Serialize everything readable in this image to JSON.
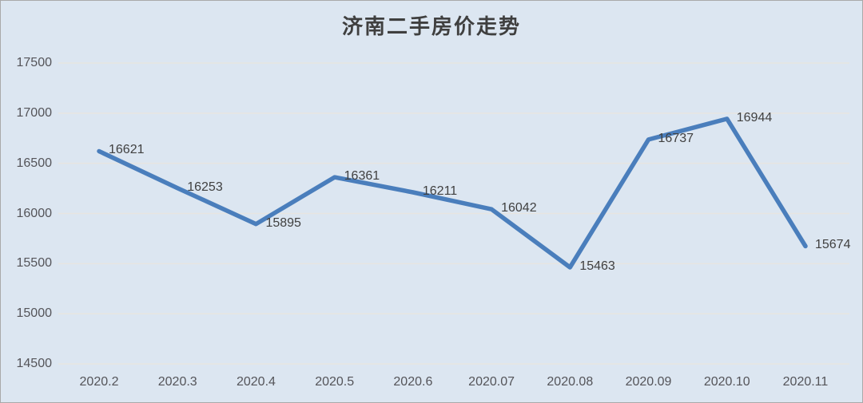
{
  "chart_data": {
    "type": "line",
    "title": "济南二手房价走势",
    "categories": [
      "2020.2",
      "2020.3",
      "2020.4",
      "2020.5",
      "2020.6",
      "2020.07",
      "2020.08",
      "2020.09",
      "2020.10",
      "2020.11"
    ],
    "series": [
      {
        "name": "济南二手房价",
        "values": [
          16621,
          16253,
          15895,
          16361,
          16211,
          16042,
          15463,
          16737,
          16944,
          15674
        ]
      }
    ],
    "xlabel": "",
    "ylabel": "",
    "ylim": [
      14500,
      17500
    ],
    "ytick_step": 500,
    "yticks": [
      14500,
      15000,
      15500,
      16000,
      16500,
      17000,
      17500
    ],
    "grid": "horizontal",
    "legend_position": "none",
    "data_labels": "right-of-point"
  },
  "colors": {
    "background": "#dce6f1",
    "line": "#4a7ebc",
    "gridline": "#e7e5e1",
    "tick_text": "#545459",
    "data_label_text": "#404040",
    "title_text": "#3f3f3f",
    "frame_border": "#a9a9a9"
  }
}
